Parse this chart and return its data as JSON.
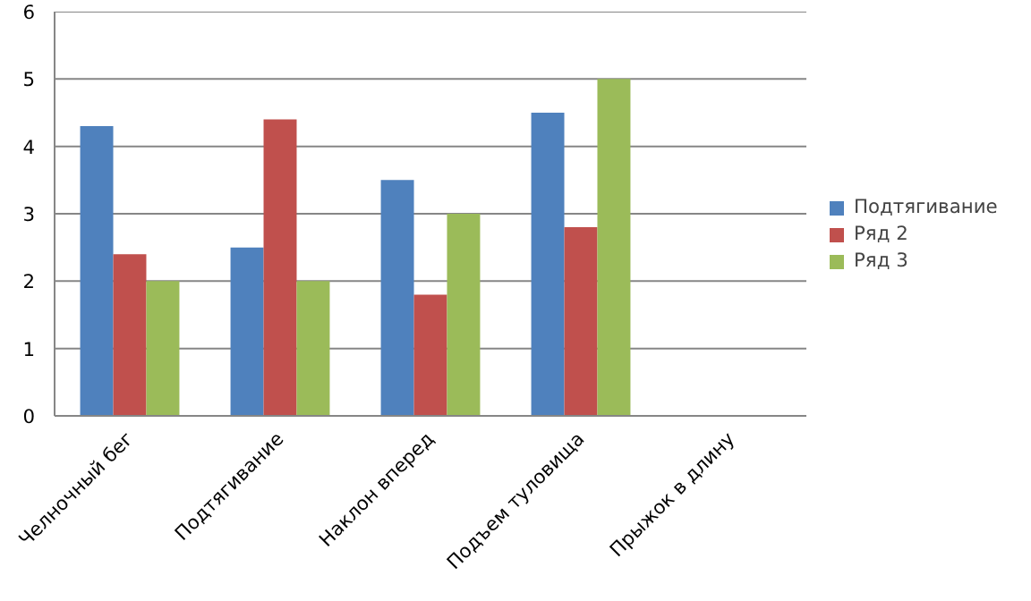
{
  "chart_data": {
    "type": "bar",
    "categories": [
      "Челночный бег",
      "Подтягивание",
      "Наклон вперед",
      "Подъем туловища",
      "Прыжок в длину"
    ],
    "series": [
      {
        "name": "Подтягивание",
        "color": "#4f81bd",
        "values": [
          4.3,
          2.5,
          3.5,
          4.5,
          null
        ]
      },
      {
        "name": "Ряд 2",
        "color": "#c0504d",
        "values": [
          2.4,
          4.4,
          1.8,
          2.8,
          null
        ]
      },
      {
        "name": "Ряд 3",
        "color": "#9bbb59",
        "values": [
          2.0,
          2.0,
          3.0,
          5.0,
          null
        ]
      }
    ],
    "ylim": [
      0,
      6
    ],
    "yticks": [
      0,
      1,
      2,
      3,
      4,
      5,
      6
    ],
    "grid": "y",
    "legend": "right"
  }
}
